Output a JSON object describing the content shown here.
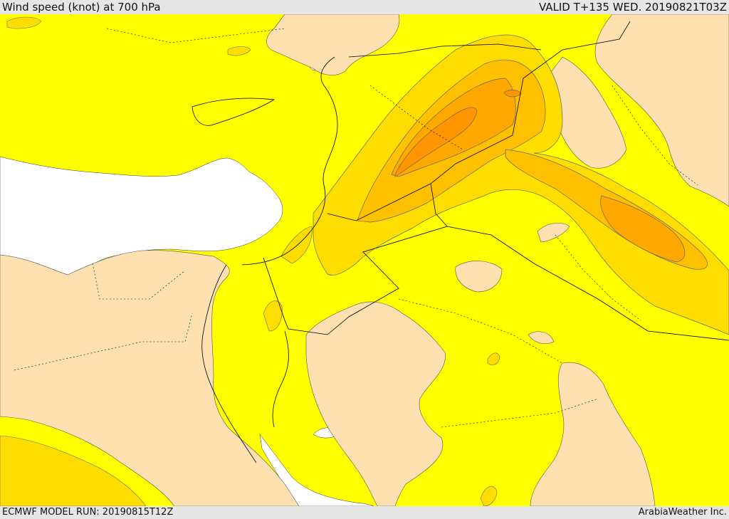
{
  "header": {
    "title": "Wind speed (knot) at 700 hPa",
    "valid": "VALID T+135 WED. 20190821T03Z"
  },
  "footer": {
    "model_run": "ECMWF MODEL RUN: 20190815T12Z",
    "credit": "ArabiaWeather Inc."
  },
  "colors": {
    "sea_calm": "#ffffff",
    "low": "#ffe0b0",
    "mid": "#ffff00",
    "mid_high": "#ffdd00",
    "high": "#ffc000",
    "higher": "#ffa800",
    "highest": "#ff9500",
    "border": "#000000"
  }
}
